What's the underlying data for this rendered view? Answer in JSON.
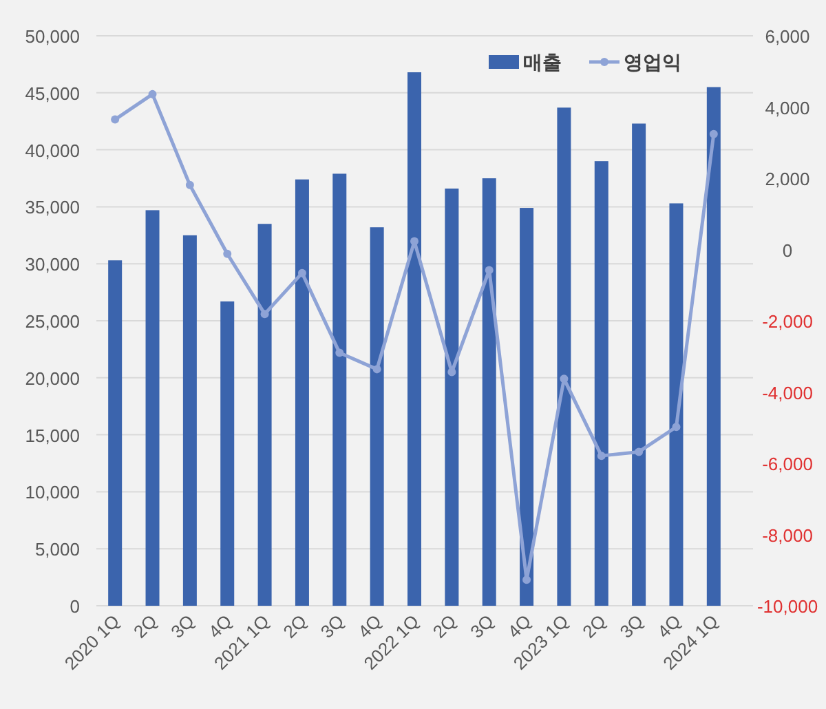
{
  "chart_data": {
    "type": "bar",
    "categories": [
      "2020 1Q",
      "2Q",
      "3Q",
      "4Q",
      "2021 1Q",
      "2Q",
      "3Q",
      "4Q",
      "2022 1Q",
      "2Q",
      "3Q",
      "4Q",
      "2023 1Q",
      "2Q",
      "3Q",
      "4Q",
      "2024 1Q"
    ],
    "series": [
      {
        "name": "매출",
        "color": "#3b64ad",
        "values": [
          30300,
          34700,
          32500,
          26700,
          33500,
          37400,
          37900,
          33200,
          46800,
          36600,
          37500,
          34900,
          43700,
          39000,
          42300,
          35300,
          45500
        ]
      },
      {
        "name": "영업익",
        "type": "line",
        "axis": "y2",
        "color": "#8ea3d6",
        "marker": "circle",
        "values": [
          3650,
          4360,
          1810,
          -120,
          -1810,
          -660,
          -2900,
          -3360,
          230,
          -3440,
          -580,
          -9270,
          -3630,
          -5790,
          -5680,
          -4980,
          3240
        ]
      }
    ],
    "ylim": [
      0,
      50000
    ],
    "yticks": [
      {
        "value": 0,
        "label": "0"
      },
      {
        "value": 5000,
        "label": "5,000"
      },
      {
        "value": 10000,
        "label": "10,000"
      },
      {
        "value": 15000,
        "label": "15,000"
      },
      {
        "value": 20000,
        "label": "20,000"
      },
      {
        "value": 25000,
        "label": "25,000"
      },
      {
        "value": 30000,
        "label": "30,000"
      },
      {
        "value": 35000,
        "label": "35,000"
      },
      {
        "value": 40000,
        "label": "40,000"
      },
      {
        "value": 45000,
        "label": "45,000"
      },
      {
        "value": 50000,
        "label": "50,000"
      }
    ],
    "y2lim": [
      -10000,
      6000
    ],
    "y2ticks": [
      {
        "value": -10000,
        "label": "-10,000"
      },
      {
        "value": -8000,
        "label": "-8,000"
      },
      {
        "value": -6000,
        "label": "-6,000"
      },
      {
        "value": -4000,
        "label": "-4,000"
      },
      {
        "value": -2000,
        "label": "-2,000"
      },
      {
        "value": 0,
        "label": "0"
      },
      {
        "value": 2000,
        "label": "2,000"
      },
      {
        "value": 4000,
        "label": "4,000"
      },
      {
        "value": 6000,
        "label": "6,000"
      }
    ],
    "grid": "y",
    "legend": "top right"
  }
}
